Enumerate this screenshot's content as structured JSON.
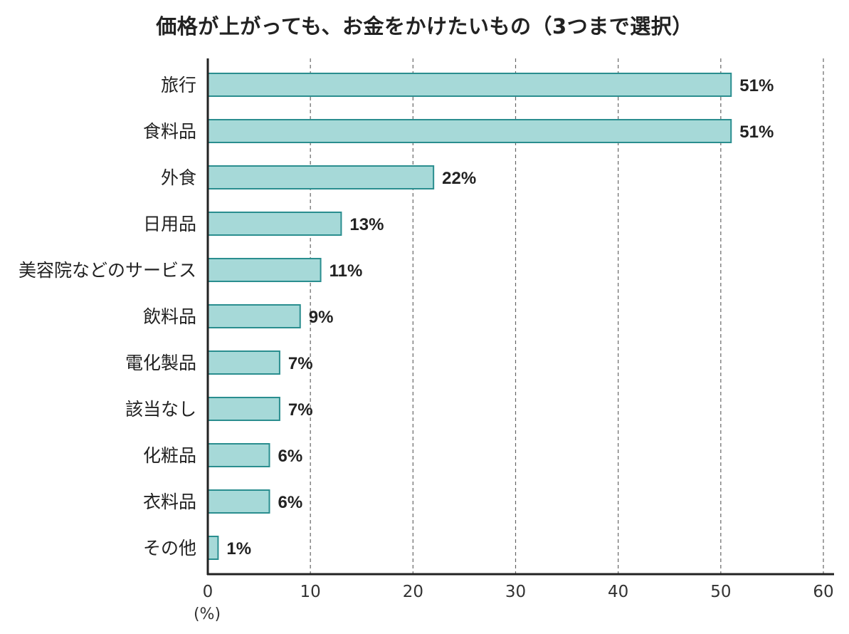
{
  "chart_data": {
    "type": "bar",
    "orientation": "horizontal",
    "title": "価格が上がっても、お金をかけたいもの（3つまで選択）",
    "categories": [
      "旅行",
      "食料品",
      "外食",
      "日用品",
      "美容院などのサービス",
      "飲料品",
      "電化製品",
      "該当なし",
      "化粧品",
      "衣料品",
      "その他"
    ],
    "values": [
      51,
      51,
      22,
      13,
      11,
      9,
      7,
      7,
      6,
      6,
      1
    ],
    "value_labels": [
      "51%",
      "51%",
      "22%",
      "13%",
      "11%",
      "9%",
      "7%",
      "7%",
      "6%",
      "6%",
      "1%"
    ],
    "xlim": [
      0,
      60
    ],
    "xticks": [
      0,
      10,
      20,
      30,
      40,
      50,
      60
    ],
    "tick_labels": [
      "0",
      "10",
      "20",
      "30",
      "40",
      "50",
      "60"
    ],
    "xlabel": "",
    "unit_label": "(%)",
    "ylabel": "",
    "grid": "vertical dashed",
    "legend": "none",
    "colors": {
      "bar_fill": "#a6d9d8",
      "bar_stroke": "#2a8e8f",
      "axis": "#222222",
      "grid": "#666666"
    }
  }
}
